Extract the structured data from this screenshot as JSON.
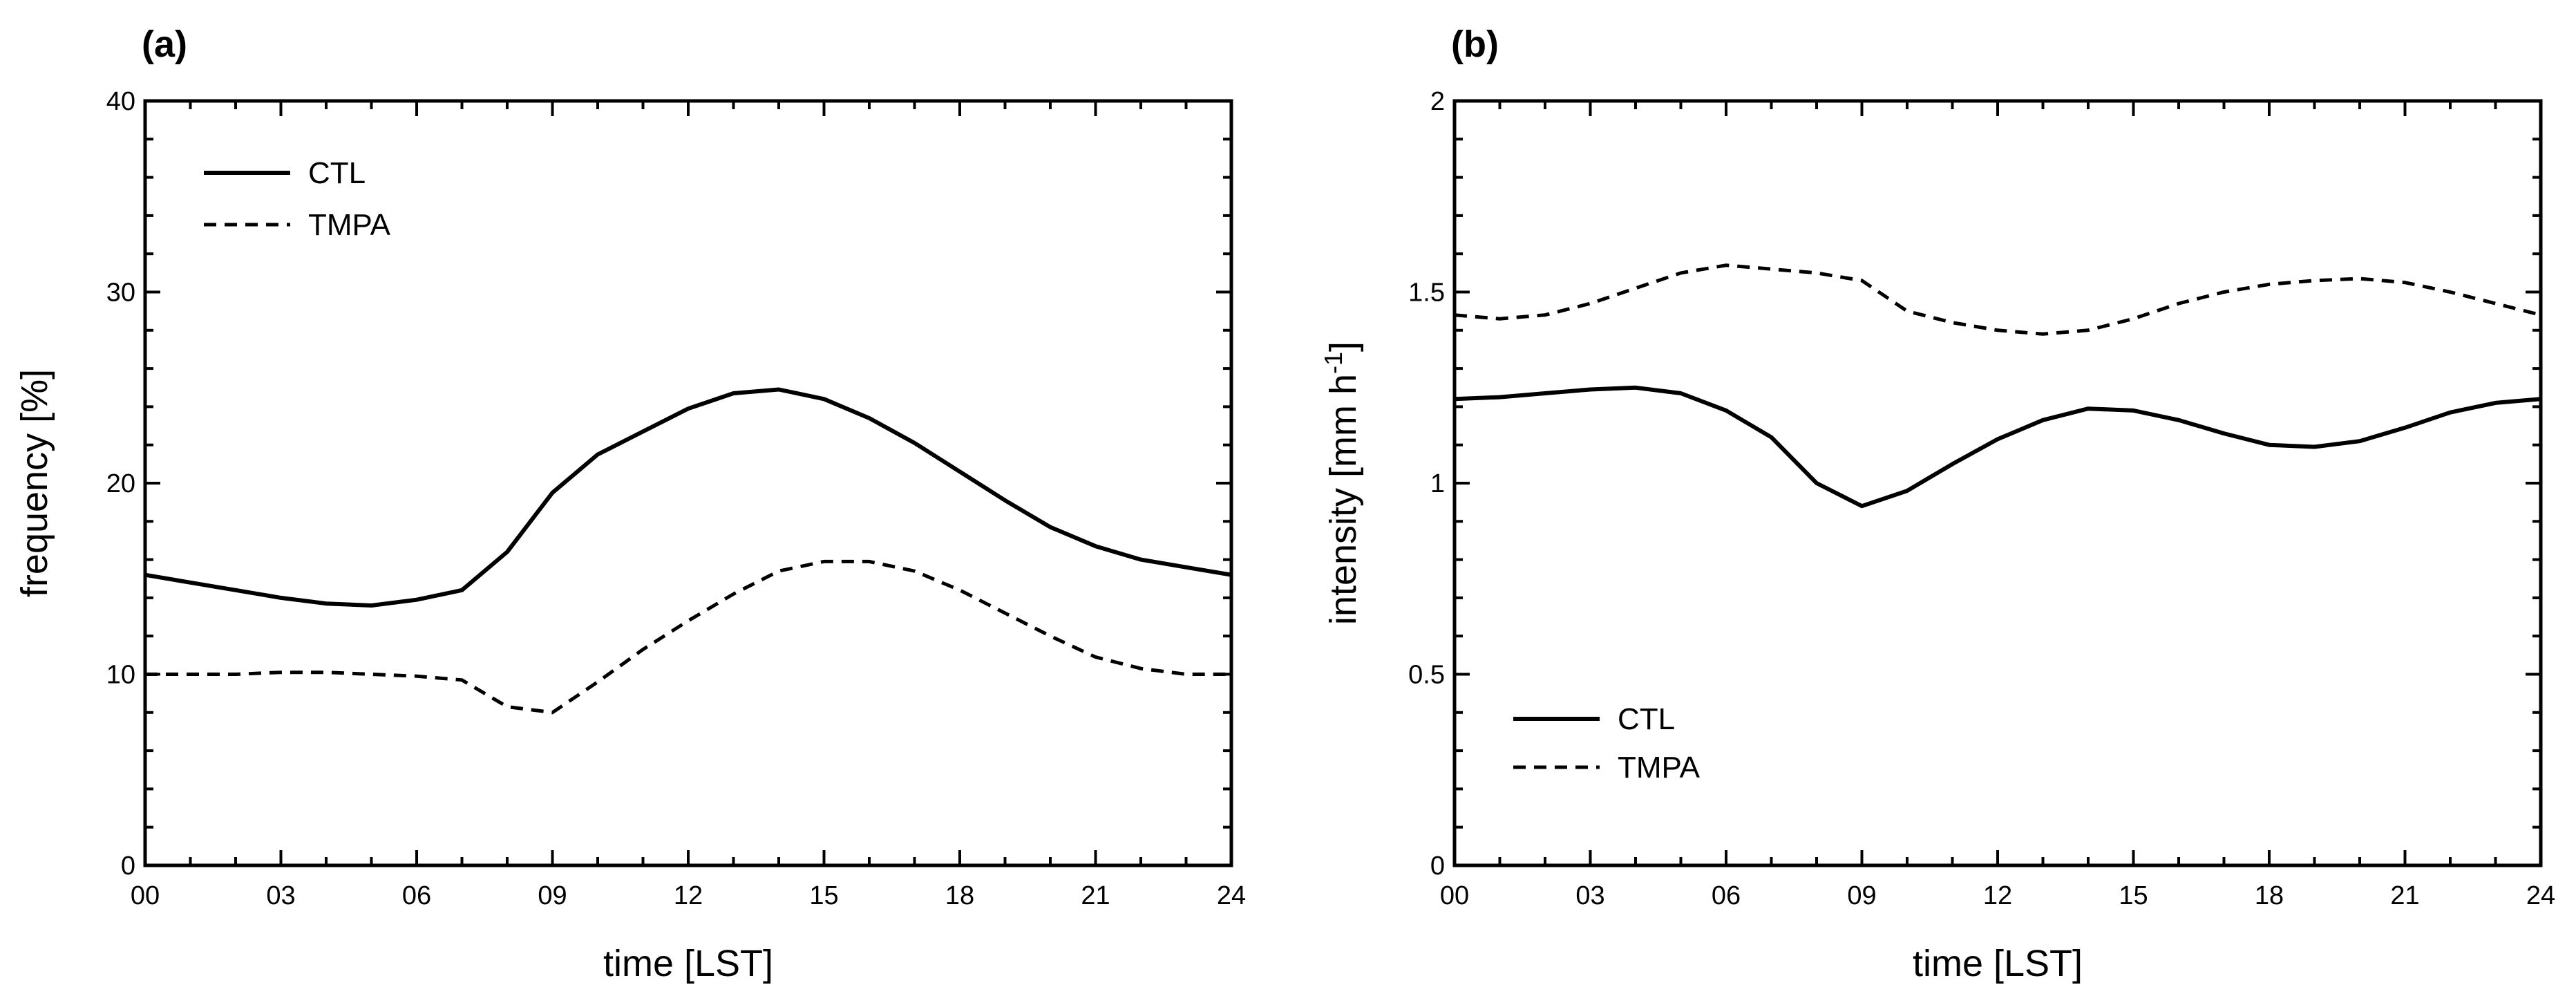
{
  "chart_data": [
    {
      "type": "line",
      "panel_label": "(a)",
      "title": "",
      "xlabel": "time [LST]",
      "ylabel": "frequency [%]",
      "xlim": [
        0,
        24
      ],
      "ylim": [
        0,
        40
      ],
      "x_ticks": [
        "00",
        "03",
        "06",
        "09",
        "12",
        "15",
        "18",
        "21",
        "24"
      ],
      "y_ticks": [
        "0",
        "10",
        "20",
        "30",
        "40"
      ],
      "legend_position": "top-left",
      "x": [
        0,
        1,
        2,
        3,
        4,
        5,
        6,
        7,
        8,
        9,
        10,
        11,
        12,
        13,
        14,
        15,
        16,
        17,
        18,
        19,
        20,
        21,
        22,
        23,
        24
      ],
      "series": [
        {
          "name": "CTL",
          "style": "solid",
          "values": [
            15.2,
            14.8,
            14.4,
            14.0,
            13.7,
            13.6,
            13.9,
            14.4,
            16.4,
            19.5,
            21.5,
            22.7,
            23.9,
            24.7,
            24.9,
            24.4,
            23.4,
            22.1,
            20.6,
            19.1,
            17.7,
            16.7,
            16.0,
            15.6,
            15.2
          ]
        },
        {
          "name": "TMPA",
          "style": "dashed",
          "values": [
            10.0,
            10.0,
            10.0,
            10.1,
            10.1,
            10.0,
            9.9,
            9.7,
            8.3,
            8.0,
            9.6,
            11.3,
            12.8,
            14.2,
            15.4,
            15.9,
            15.9,
            15.4,
            14.4,
            13.2,
            12.0,
            10.9,
            10.3,
            10.0,
            10.0
          ]
        }
      ]
    },
    {
      "type": "line",
      "panel_label": "(b)",
      "title": "",
      "xlabel": "time [LST]",
      "ylabel": "intensity [mm h",
      "ylabel_superscript": "-1",
      "ylabel_suffix": "]",
      "xlim": [
        0,
        24
      ],
      "ylim": [
        0,
        2
      ],
      "x_ticks": [
        "00",
        "03",
        "06",
        "09",
        "12",
        "15",
        "18",
        "21",
        "24"
      ],
      "y_ticks": [
        "0",
        "0.5",
        "1",
        "1.5",
        "2"
      ],
      "legend_position": "bottom-left",
      "x": [
        0,
        1,
        2,
        3,
        4,
        5,
        6,
        7,
        8,
        9,
        10,
        11,
        12,
        13,
        14,
        15,
        16,
        17,
        18,
        19,
        20,
        21,
        22,
        23,
        24
      ],
      "series": [
        {
          "name": "CTL",
          "style": "solid",
          "values": [
            1.22,
            1.225,
            1.235,
            1.245,
            1.25,
            1.235,
            1.19,
            1.12,
            1.0,
            0.94,
            0.98,
            1.05,
            1.115,
            1.165,
            1.195,
            1.19,
            1.165,
            1.13,
            1.1,
            1.095,
            1.11,
            1.145,
            1.185,
            1.21,
            1.22
          ]
        },
        {
          "name": "TMPA",
          "style": "dashed",
          "values": [
            1.44,
            1.43,
            1.44,
            1.47,
            1.51,
            1.55,
            1.57,
            1.56,
            1.55,
            1.53,
            1.45,
            1.42,
            1.4,
            1.39,
            1.4,
            1.43,
            1.47,
            1.5,
            1.52,
            1.53,
            1.535,
            1.525,
            1.5,
            1.47,
            1.44
          ]
        }
      ]
    }
  ]
}
